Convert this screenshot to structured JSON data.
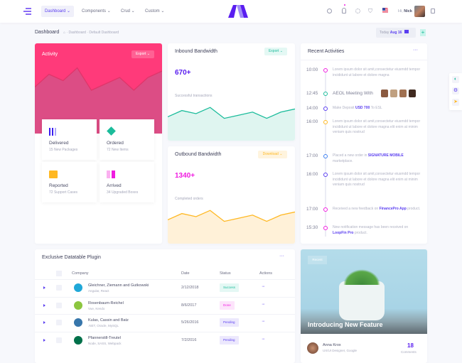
{
  "header": {
    "nav": [
      {
        "label": "Dashboard",
        "active": true
      },
      {
        "label": "Components"
      },
      {
        "label": "Crud"
      },
      {
        "label": "Custom"
      }
    ],
    "greeting": "Hi,",
    "user": "Nick"
  },
  "subheader": {
    "title": "Dashboard",
    "breadcrumb": [
      "Dashboard",
      "Default Dashboard"
    ],
    "today_label": "Today",
    "today_date": "Aug 16"
  },
  "activity": {
    "title": "Activity",
    "export": "Export",
    "chart": [
      52,
      68,
      60,
      76,
      48,
      56,
      64,
      48,
      64,
      72
    ],
    "color": "#ff3a7a",
    "items": [
      {
        "title": "Delivered",
        "sub": "15 New Packages"
      },
      {
        "title": "Ordered",
        "sub": "72 New Items"
      },
      {
        "title": "Reported",
        "sub": "72 Support Cases"
      },
      {
        "title": "Arrived",
        "sub": "34 Upgraded Boxes"
      }
    ]
  },
  "inbound": {
    "title": "Inbound Bandwidth",
    "button": "Export",
    "value": "670+",
    "caption": "Successful transactions",
    "chart": [
      52,
      68,
      60,
      76,
      48,
      56,
      64,
      48,
      64,
      72
    ],
    "color": "#1bbc9b"
  },
  "outbound": {
    "title": "Outbound Bandwidth",
    "button": "Download",
    "value": "1340+",
    "caption": "Completed orders",
    "chart": [
      52,
      68,
      60,
      76,
      48,
      56,
      64,
      48,
      64,
      72
    ],
    "color": "#ffb822"
  },
  "recent": {
    "title": "Recent Activities",
    "items": [
      {
        "time": "10:00",
        "color": "#f01ce0",
        "pre": "Lorem ipsum dolor sit amit,consectetur eiusmdd tempor incididunt ut labore et dolore magna",
        "link": "",
        "post": ""
      },
      {
        "time": "12:45",
        "color": "#1bbc9b",
        "pre": "AEOL Meeting With",
        "link": "",
        "post": ""
      },
      {
        "time": "14:00",
        "color": "#5a3ef0",
        "pre": "Make Deposit ",
        "link": "USD 700",
        "post": " To ESL"
      },
      {
        "time": "16:00",
        "color": "#ffb822",
        "pre": "Lorem ipsum dolor sit amit,consectetur eiusmdd tempor incididunt ut labore et dolore magna elit enim at minim veniam quis nostrud",
        "link": "",
        "post": ""
      },
      {
        "time": "17:00",
        "color": "#3d7ff0",
        "pre": "Placed a new order in ",
        "link": "SIGNATURE MOBILE",
        "post": " marketplace."
      },
      {
        "time": "16:00",
        "color": "#5a3ef0",
        "pre": "Lorem ipsum dolor sit amit,consectetur eiusmdd tempor incididunt ut labore et dolore magna elit enim at minim veniam quis nostrud",
        "link": "",
        "post": ""
      },
      {
        "time": "17:00",
        "color": "#f01ce0",
        "pre": "Received a new feedback on ",
        "link": "FinancePro App",
        "post": " product."
      },
      {
        "time": "15:30",
        "color": "#f01ce0",
        "pre": "New notification message has been received on ",
        "link": "LoopFin Pro",
        "post": " product."
      }
    ]
  },
  "table": {
    "title": "Exclusive Datatable Plugin",
    "columns": [
      "Company",
      "Date",
      "Status",
      "Actions"
    ],
    "rows": [
      {
        "name": "Gleichner, Ziemann and Gutkowski",
        "sub": "Angular, React",
        "date": "2/12/2018",
        "status": "Success",
        "logo": "#20a8d8"
      },
      {
        "name": "Rosenbaum-Reichel",
        "sub": "Vue, Kendo",
        "date": "8/6/2017",
        "status": "Done",
        "logo": "#8cc63f"
      },
      {
        "name": "Kulas, Cassin and Batz",
        "sub": ".NET, Oracle, MySQL",
        "date": "5/26/2016",
        "status": "Pending",
        "logo": "#3776ab"
      },
      {
        "name": "Pfannerstill-Treutel",
        "sub": "Node, SASS, Webpack",
        "date": "7/2/2016",
        "status": "Pending",
        "logo": "#00704a"
      }
    ]
  },
  "feature": {
    "badge": "Recent",
    "title": "Introducing New Feature",
    "author": "Anna Krox",
    "role": "UX/UI Designer, Google",
    "comments": "18",
    "comments_label": "Comments"
  }
}
